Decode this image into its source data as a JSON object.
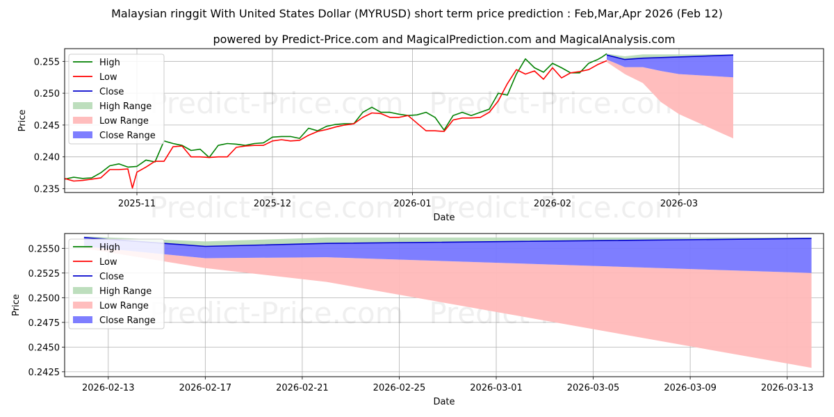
{
  "titles": {
    "main": "Malaysian ringgit With United States Dollar (MYRUSD) short term price prediction : Feb,Mar,Apr 2026 (Feb 12)",
    "sub": "powered by Predict-Price.com and MagicalPrediction.com and MagicalAnalysis.com"
  },
  "watermark": "Predict-Price.com",
  "colors": {
    "high": "#008000",
    "low": "#ff0000",
    "close": "#0000cc",
    "high_range": "#b2d8b2",
    "low_range": "#ffb9b9",
    "close_range": "#7777ff"
  },
  "legend": [
    "High",
    "Low",
    "Close",
    "High Range",
    "Low Range",
    "Close Range"
  ],
  "chart_data": [
    {
      "type": "line",
      "xlabel": "Date",
      "ylabel": "Price",
      "xlim": [
        0,
        168
      ],
      "ylim": [
        0.2344,
        0.257
      ],
      "yticks": [
        0.235,
        0.24,
        0.245,
        0.25,
        0.255
      ],
      "ytick_labels": [
        "0.235",
        "0.240",
        "0.245",
        "0.250",
        "0.255"
      ],
      "xticks": [
        16,
        46,
        77,
        108,
        136
      ],
      "xtick_labels": [
        "2025-11",
        "2025-12",
        "2026-01",
        "2026-02",
        "2026-03"
      ],
      "x_note": "day index, 0 = 2025-10-16",
      "series": [
        {
          "name": "High",
          "x": [
            0,
            2,
            4,
            6,
            8,
            10,
            12,
            14,
            16,
            18,
            20,
            22,
            24,
            26,
            28,
            30,
            32,
            34,
            36,
            38,
            40,
            42,
            44,
            46,
            48,
            50,
            52,
            54,
            56,
            58,
            60,
            62,
            64,
            66,
            68,
            70,
            72,
            74,
            76,
            78,
            80,
            82,
            84,
            86,
            88,
            90,
            92,
            94,
            96,
            98,
            100,
            102,
            104,
            106,
            108,
            110,
            112,
            114,
            116,
            117,
            118,
            119,
            120
          ],
          "values": [
            0.2365,
            0.2368,
            0.2366,
            0.2367,
            0.2375,
            0.2386,
            0.2389,
            0.2384,
            0.2385,
            0.2395,
            0.2392,
            0.2425,
            0.2421,
            0.2418,
            0.241,
            0.2412,
            0.2399,
            0.2418,
            0.2421,
            0.242,
            0.2418,
            0.2421,
            0.2422,
            0.2431,
            0.2432,
            0.2432,
            0.2429,
            0.2445,
            0.2441,
            0.2448,
            0.2451,
            0.2452,
            0.2452,
            0.247,
            0.2478,
            0.247,
            0.247,
            0.2467,
            0.2465,
            0.2466,
            0.247,
            0.2462,
            0.2442,
            0.2465,
            0.247,
            0.2465,
            0.247,
            0.2475,
            0.25,
            0.2497,
            0.253,
            0.2554,
            0.254,
            0.2533,
            0.2547,
            0.254,
            0.2532,
            0.2532,
            0.2547,
            0.255,
            0.2553,
            0.2557,
            0.2562
          ]
        },
        {
          "name": "Low",
          "x": [
            0,
            2,
            4,
            6,
            8,
            10,
            12,
            14,
            15,
            16,
            18,
            20,
            22,
            24,
            26,
            28,
            30,
            32,
            34,
            36,
            38,
            40,
            42,
            44,
            46,
            48,
            50,
            52,
            54,
            56,
            58,
            60,
            62,
            64,
            66,
            68,
            70,
            72,
            74,
            76,
            78,
            80,
            82,
            84,
            86,
            88,
            90,
            92,
            94,
            96,
            98,
            100,
            102,
            104,
            106,
            108,
            110,
            112,
            114,
            116,
            118,
            120
          ],
          "values": [
            0.2366,
            0.2362,
            0.2363,
            0.2365,
            0.2367,
            0.238,
            0.238,
            0.2381,
            0.2351,
            0.2376,
            0.2384,
            0.2393,
            0.2393,
            0.2416,
            0.2417,
            0.24,
            0.24,
            0.2399,
            0.24,
            0.24,
            0.2415,
            0.2417,
            0.2418,
            0.2418,
            0.2425,
            0.2427,
            0.2425,
            0.2426,
            0.2434,
            0.244,
            0.2443,
            0.2447,
            0.245,
            0.2452,
            0.2462,
            0.2469,
            0.2468,
            0.2462,
            0.2462,
            0.2465,
            0.2453,
            0.2441,
            0.2441,
            0.244,
            0.2458,
            0.2461,
            0.2461,
            0.2462,
            0.247,
            0.2488,
            0.2515,
            0.2537,
            0.253,
            0.2535,
            0.2522,
            0.254,
            0.2524,
            0.2532,
            0.2534,
            0.2537,
            0.2545,
            0.2551
          ]
        },
        {
          "name": "Close",
          "x": [
            120,
            124,
            128,
            132,
            136,
            148
          ],
          "values": [
            0.256,
            0.2553,
            0.2555,
            0.2556,
            0.2557,
            0.256
          ]
        }
      ],
      "ranges": [
        {
          "name": "High Range",
          "x": [
            120,
            124,
            128,
            132,
            136,
            148
          ],
          "upper": [
            0.2562,
            0.2558,
            0.2561,
            0.2561,
            0.2561,
            0.2561
          ],
          "lower": [
            0.256,
            0.2553,
            0.2555,
            0.2556,
            0.2557,
            0.256
          ]
        },
        {
          "name": "Low Range",
          "x": [
            120,
            124,
            128,
            132,
            136,
            148
          ],
          "upper": [
            0.2553,
            0.2541,
            0.2541,
            0.2535,
            0.253,
            0.2525
          ],
          "lower": [
            0.2549,
            0.253,
            0.2516,
            0.2486,
            0.2467,
            0.2429
          ]
        },
        {
          "name": "Close Range",
          "x": [
            120,
            124,
            128,
            132,
            136,
            148
          ],
          "upper": [
            0.256,
            0.2553,
            0.2555,
            0.2556,
            0.2557,
            0.256
          ],
          "lower": [
            0.2553,
            0.2541,
            0.2541,
            0.2535,
            0.253,
            0.2525
          ]
        }
      ]
    },
    {
      "type": "line",
      "xlabel": "Date",
      "ylabel": "Price",
      "xlim": [
        -0.8,
        30.5
      ],
      "ylim": [
        0.242,
        0.2565
      ],
      "yticks": [
        0.2425,
        0.245,
        0.2475,
        0.25,
        0.2525,
        0.255
      ],
      "ytick_labels": [
        "0.2425",
        "0.2450",
        "0.2475",
        "0.2500",
        "0.2525",
        "0.2550"
      ],
      "xticks": [
        1,
        5,
        9,
        13,
        17,
        21,
        25,
        29
      ],
      "xtick_labels": [
        "2026-02-13",
        "2026-02-17",
        "2026-02-21",
        "2026-02-25",
        "2026-03-01",
        "2026-03-05",
        "2026-03-09",
        "2026-03-13"
      ],
      "x_note": "day index, 0 = 2026-02-12",
      "series": [
        {
          "name": "Close",
          "x": [
            0,
            5,
            10,
            30
          ],
          "values": [
            0.2561,
            0.2552,
            0.2555,
            0.256
          ]
        }
      ],
      "ranges": [
        {
          "name": "High Range",
          "x": [
            0,
            5,
            10,
            30
          ],
          "upper": [
            0.2562,
            0.2557,
            0.2561,
            0.2561
          ],
          "lower": [
            0.2561,
            0.2552,
            0.2555,
            0.256
          ]
        },
        {
          "name": "Low Range",
          "x": [
            0,
            5,
            10,
            30
          ],
          "upper": [
            0.2552,
            0.254,
            0.2541,
            0.2525
          ],
          "lower": [
            0.255,
            0.253,
            0.2516,
            0.2429
          ]
        },
        {
          "name": "Close Range",
          "x": [
            0,
            5,
            10,
            30
          ],
          "upper": [
            0.2561,
            0.2552,
            0.2555,
            0.256
          ],
          "lower": [
            0.2552,
            0.254,
            0.2541,
            0.2525
          ]
        }
      ]
    }
  ]
}
